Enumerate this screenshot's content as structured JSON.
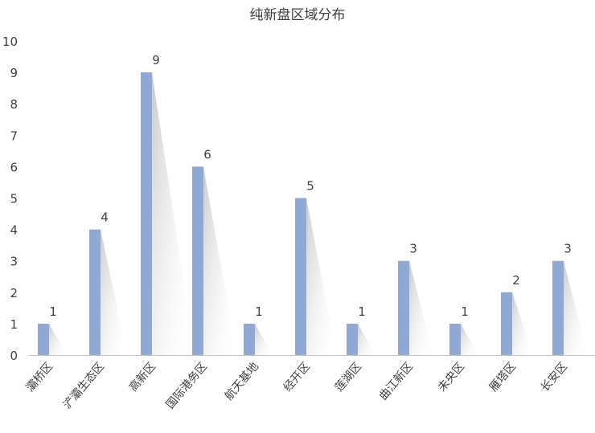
{
  "chart_data": {
    "type": "bar",
    "title": "纯新盘区域分布",
    "categories": [
      "灞桥区",
      "浐灞生态区",
      "高新区",
      "国际港务区",
      "航天基地",
      "经开区",
      "莲湖区",
      "曲江新区",
      "未央区",
      "雁塔区",
      "长安区"
    ],
    "values": [
      1,
      4,
      9,
      6,
      1,
      5,
      1,
      3,
      1,
      2,
      3
    ],
    "ylim": [
      0,
      10
    ],
    "yticks": [
      0,
      1,
      2,
      3,
      4,
      5,
      6,
      7,
      8,
      9,
      10
    ],
    "xlabel": "",
    "ylabel": "",
    "grid": false,
    "legend": "none",
    "data_labels": true,
    "colors": {
      "bar": "#8faad2",
      "axis": "#c8c8c8",
      "text": "#404040"
    }
  }
}
